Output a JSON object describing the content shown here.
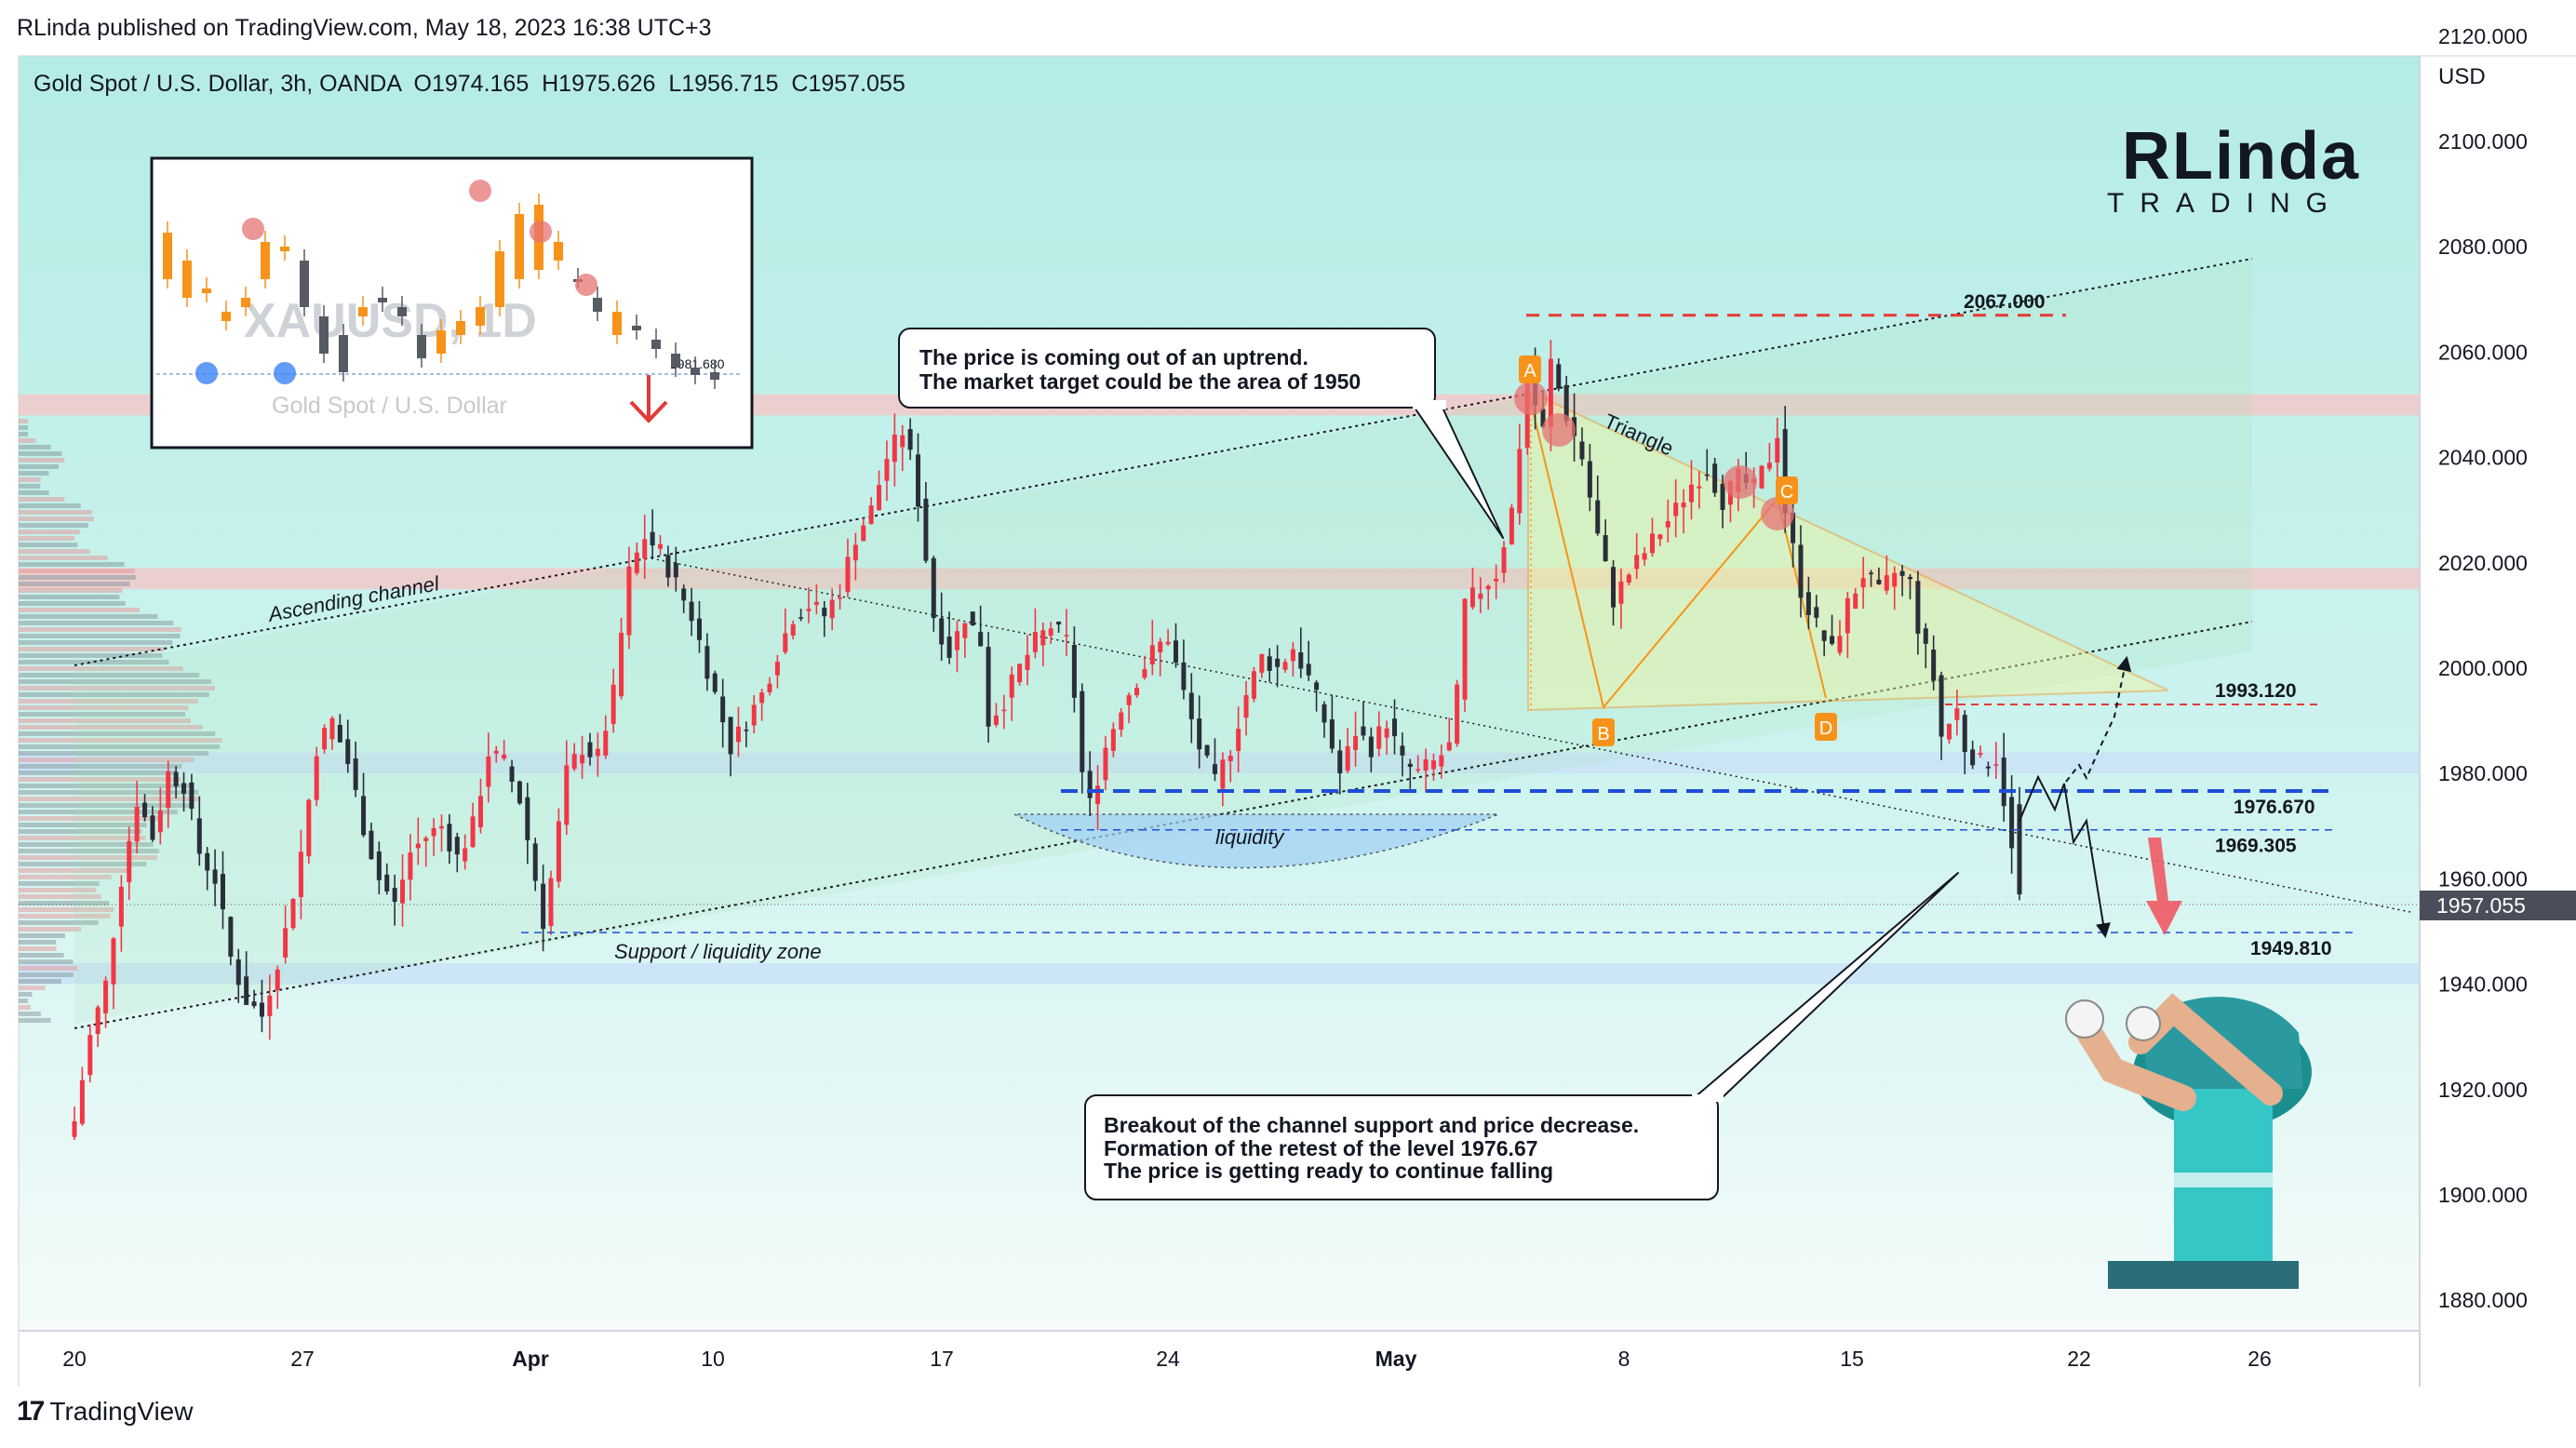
{
  "header": {
    "published": "RLinda published on TradingView.com, May 18, 2023 16:38 UTC+3",
    "symbol_line": "Gold Spot / U.S. Dollar, 3h, OANDA  O1974.165  H1975.626  L1956.715  C1957.055"
  },
  "footer": {
    "brand": "TradingView",
    "brand_mark": "17"
  },
  "brand_logo": {
    "line1": "RLinda",
    "line2": "TRADING"
  },
  "colors": {
    "bull": "#f23645",
    "bear": "#2a2e39",
    "accent_orange": "#f7931a",
    "level_red": "#e53935",
    "level_blue": "#1e4fd8",
    "bg_teal": "#b5ece6"
  },
  "chart_data": {
    "type": "candlestick",
    "symbol": "Gold Spot / U.S. Dollar",
    "timeframe": "3h",
    "exchange": "OANDA",
    "ohlc_last": {
      "open": 1974.165,
      "high": 1975.626,
      "low": 1956.715,
      "close": 1957.055
    },
    "y_axis": {
      "unit": "USD",
      "ticks": [
        "2120.000",
        "2100.000",
        "2080.000",
        "2060.000",
        "2040.000",
        "2020.000",
        "2000.000",
        "1980.000",
        "1960.000",
        "1940.000",
        "1920.000",
        "1900.000",
        "1880.000"
      ],
      "range": [
        1867,
        2135
      ],
      "current_price": "1957.055"
    },
    "x_axis": {
      "ticks": [
        "20",
        "27",
        "Apr",
        "10",
        "17",
        "24",
        "May",
        "8",
        "15",
        "22",
        "26"
      ]
    },
    "price_path": [
      [
        0,
        1914
      ],
      [
        2,
        1930
      ],
      [
        4,
        1940
      ],
      [
        6,
        1960
      ],
      [
        8,
        1975
      ],
      [
        10,
        1968
      ],
      [
        12,
        1980
      ],
      [
        14,
        1978
      ],
      [
        16,
        1965
      ],
      [
        18,
        1960
      ],
      [
        20,
        1945
      ],
      [
        22,
        1937
      ],
      [
        24,
        1934
      ],
      [
        27,
        1950
      ],
      [
        29,
        1965
      ],
      [
        31,
        1985
      ],
      [
        33,
        1990
      ],
      [
        35,
        1982
      ],
      [
        37,
        1970
      ],
      [
        39,
        1960
      ],
      [
        41,
        1955
      ],
      [
        43,
        1965
      ],
      [
        45,
        1968
      ],
      [
        47,
        1970
      ],
      [
        49,
        1964
      ],
      [
        51,
        1970
      ],
      [
        53,
        1984
      ],
      [
        55,
        1982
      ],
      [
        57,
        1975
      ],
      [
        59,
        1960
      ],
      [
        60,
        1952
      ],
      [
        61,
        1960
      ],
      [
        63,
        1980
      ],
      [
        65,
        1985
      ],
      [
        67,
        1983
      ],
      [
        69,
        1995
      ],
      [
        71,
        2018
      ],
      [
        73,
        2025
      ],
      [
        75,
        2022
      ],
      [
        77,
        2016
      ],
      [
        79,
        2010
      ],
      [
        80,
        2005
      ],
      [
        82,
        1995
      ],
      [
        84,
        1985
      ],
      [
        86,
        1990
      ],
      [
        88,
        1995
      ],
      [
        90,
        2003
      ],
      [
        92,
        2010
      ],
      [
        94,
        2012
      ],
      [
        96,
        2010
      ],
      [
        98,
        2015
      ],
      [
        100,
        2025
      ],
      [
        102,
        2030
      ],
      [
        104,
        2040
      ],
      [
        106,
        2045
      ],
      [
        107,
        2040
      ],
      [
        108,
        2032
      ],
      [
        110,
        2010
      ],
      [
        112,
        2003
      ],
      [
        114,
        2010
      ],
      [
        116,
        2005
      ],
      [
        117,
        1990
      ],
      [
        119,
        1994
      ],
      [
        121,
        2000
      ],
      [
        123,
        2005
      ],
      [
        125,
        2008
      ],
      [
        127,
        2005
      ],
      [
        128,
        1995
      ],
      [
        129,
        1980
      ],
      [
        130,
        1974
      ],
      [
        132,
        1985
      ],
      [
        134,
        1993
      ],
      [
        136,
        1998
      ],
      [
        138,
        2003
      ],
      [
        140,
        2006
      ],
      [
        142,
        1995
      ],
      [
        144,
        1985
      ],
      [
        146,
        1978
      ],
      [
        148,
        1985
      ],
      [
        150,
        1995
      ],
      [
        152,
        2002
      ],
      [
        154,
        2000
      ],
      [
        156,
        2004
      ],
      [
        158,
        1998
      ],
      [
        160,
        1990
      ],
      [
        162,
        1980
      ],
      [
        164,
        1988
      ],
      [
        166,
        1985
      ],
      [
        168,
        1990
      ],
      [
        170,
        1982
      ],
      [
        172,
        1980
      ],
      [
        174,
        1982
      ],
      [
        176,
        1985
      ],
      [
        177,
        1995
      ],
      [
        178,
        2012
      ],
      [
        180,
        2015
      ],
      [
        182,
        2018
      ],
      [
        184,
        2030
      ],
      [
        186,
        2055
      ],
      [
        188,
        2045
      ],
      [
        189,
        2058
      ],
      [
        191,
        2048
      ],
      [
        193,
        2040
      ],
      [
        195,
        2025
      ],
      [
        197,
        2013
      ],
      [
        199,
        2018
      ],
      [
        201,
        2022
      ],
      [
        203,
        2026
      ],
      [
        205,
        2030
      ],
      [
        207,
        2035
      ],
      [
        209,
        2038
      ],
      [
        211,
        2032
      ],
      [
        213,
        2036
      ],
      [
        215,
        2034
      ],
      [
        217,
        2040
      ],
      [
        218,
        2045
      ],
      [
        219,
        2030
      ],
      [
        221,
        2015
      ],
      [
        223,
        2008
      ],
      [
        225,
        2003
      ],
      [
        227,
        2012
      ],
      [
        229,
        2018
      ],
      [
        231,
        2014
      ],
      [
        233,
        2018
      ],
      [
        235,
        2016
      ],
      [
        236,
        2008
      ],
      [
        238,
        1998
      ],
      [
        239,
        1987
      ],
      [
        241,
        1992
      ],
      [
        242,
        1985
      ],
      [
        244,
        1982
      ],
      [
        246,
        1983
      ],
      [
        247,
        1975
      ],
      [
        248,
        1965
      ],
      [
        249,
        1957.055
      ]
    ],
    "levels": [
      {
        "label": "2067.000",
        "price": 2067.0,
        "style": "red-dashed"
      },
      {
        "label": "1993.120",
        "price": 1993.12,
        "style": "red-dashed-thin"
      },
      {
        "label": "1976.670",
        "price": 1976.67,
        "style": "blue-dashed-thick"
      },
      {
        "label": "1969.305",
        "price": 1969.305,
        "style": "blue-dashed-thin"
      },
      {
        "label": "1949.810",
        "price": 1949.81,
        "style": "blue-dashed-thin"
      }
    ],
    "zones": [
      {
        "from": 2048,
        "to": 2052,
        "color": "red"
      },
      {
        "from": 2015,
        "to": 2019,
        "color": "red"
      },
      {
        "from": 1980,
        "to": 1984,
        "color": "blue"
      },
      {
        "from": 1940,
        "to": 1944,
        "color": "blue"
      }
    ],
    "pattern_points": [
      "A",
      "B",
      "C",
      "D"
    ],
    "annotations": {
      "callout_top_line1": "The price is coming out of an uptrend.",
      "callout_top_line2": "The market target could be the area of 1950",
      "callout_bottom_line1": "Breakout of the channel support and price decrease.",
      "callout_bottom_line2": "Formation of the retest of the level 1976.67",
      "callout_bottom_line3": "The price is getting ready to continue falling",
      "triangle": "Triangle",
      "ascending_channel": "Ascending channel",
      "liquidity": "liquidity",
      "support_zone": "Support / liquidity zone"
    },
    "inset": {
      "watermark": "XAUUSD, 1D",
      "subtitle": "Gold Spot / U.S. Dollar",
      "level": "1981.680"
    }
  }
}
